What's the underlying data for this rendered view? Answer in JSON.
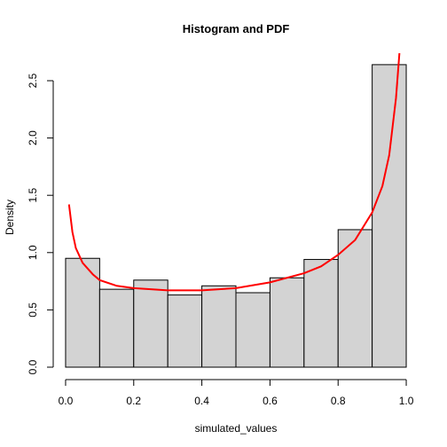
{
  "chart_data": {
    "type": "histogram",
    "title": "Histogram and PDF",
    "xlabel": "simulated_values",
    "ylabel": "Density",
    "bins": [
      0.0,
      0.1,
      0.2,
      0.3,
      0.4,
      0.5,
      0.6,
      0.7,
      0.8,
      0.9,
      1.0
    ],
    "values": [
      0.95,
      0.68,
      0.76,
      0.63,
      0.71,
      0.65,
      0.78,
      0.94,
      1.2,
      2.64
    ],
    "color": "#d3d3d3",
    "edgecolor": "#000000",
    "pdf": {
      "color": "#ff0000",
      "x": [
        0.01,
        0.02,
        0.03,
        0.05,
        0.08,
        0.1,
        0.15,
        0.2,
        0.3,
        0.4,
        0.5,
        0.6,
        0.7,
        0.75,
        0.8,
        0.85,
        0.9,
        0.93,
        0.95,
        0.97,
        0.98
      ],
      "values": [
        1.42,
        1.18,
        1.04,
        0.91,
        0.81,
        0.76,
        0.71,
        0.69,
        0.67,
        0.67,
        0.69,
        0.74,
        0.82,
        0.88,
        0.98,
        1.11,
        1.35,
        1.58,
        1.85,
        2.35,
        2.74
      ]
    },
    "xlim": [
      -0.04,
      1.04
    ],
    "ylim": [
      0,
      2.76
    ],
    "xticks": [
      {
        "value": 0,
        "label": "0.0"
      },
      0.2,
      0.4,
      0.6,
      0.8,
      {
        "value": 1,
        "label": "1.0"
      }
    ],
    "yticks": [
      {
        "value": 0,
        "label": "0.0"
      },
      0.5,
      {
        "value": 1,
        "label": "1.0"
      },
      1.5,
      {
        "value": 2,
        "label": "2.0"
      },
      2.5
    ]
  }
}
